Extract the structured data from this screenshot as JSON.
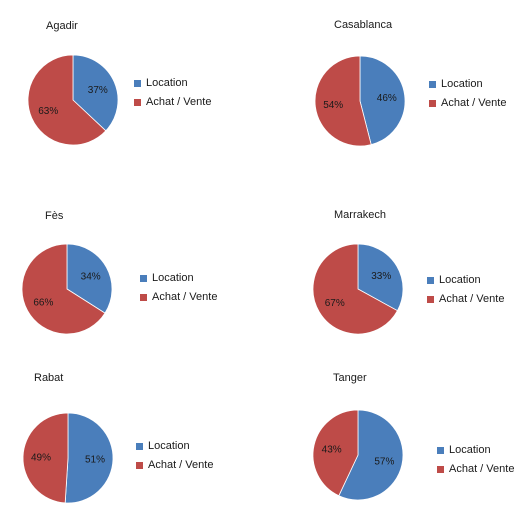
{
  "colors": {
    "location": "#4a7ebb",
    "achat": "#be4b48",
    "edge": "#ffffff"
  },
  "legend_labels": [
    "Location",
    "Achat / Vente"
  ],
  "chart_data": [
    {
      "type": "pie",
      "title": "Agadir",
      "categories": [
        "Location",
        "Achat / Vente"
      ],
      "values": [
        37,
        63
      ],
      "labels": [
        "37%",
        "63%"
      ]
    },
    {
      "type": "pie",
      "title": "Casablanca",
      "categories": [
        "Location",
        "Achat / Vente"
      ],
      "values": [
        46,
        54
      ],
      "labels": [
        "46%",
        "54%"
      ]
    },
    {
      "type": "pie",
      "title": "Fès",
      "categories": [
        "Location",
        "Achat / Vente"
      ],
      "values": [
        34,
        66
      ],
      "labels": [
        "34%",
        "66%"
      ]
    },
    {
      "type": "pie",
      "title": "Marrakech",
      "categories": [
        "Location",
        "Achat / Vente"
      ],
      "values": [
        33,
        67
      ],
      "labels": [
        "33%",
        "67%"
      ]
    },
    {
      "type": "pie",
      "title": "Rabat",
      "categories": [
        "Location",
        "Achat / Vente"
      ],
      "values": [
        51,
        49
      ],
      "labels": [
        "51%",
        "49%"
      ]
    },
    {
      "type": "pie",
      "title": "Tanger",
      "categories": [
        "Location",
        "Achat / Vente"
      ],
      "values": [
        57,
        43
      ],
      "labels": [
        "57%",
        "43%"
      ]
    }
  ]
}
